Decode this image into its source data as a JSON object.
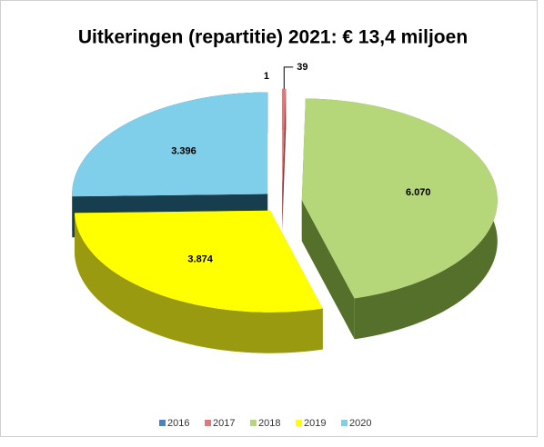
{
  "chart_data": {
    "type": "pie3d",
    "title": "Uitkeringen (repartitie) 2021: € 13,4 miljoen",
    "categories": [
      "2016",
      "2017",
      "2018",
      "2019",
      "2020"
    ],
    "values": [
      1,
      39,
      6070,
      3874,
      3396
    ],
    "value_labels": [
      "1",
      "39",
      "6.070",
      "3.874",
      "3.396"
    ],
    "colors": [
      "#4f81bd",
      "#e07a7a",
      "#b5d77a",
      "#ffff00",
      "#7fcfea"
    ],
    "side_colors": [
      "#2c4a70",
      "#8a3a3a",
      "#55702a",
      "#9a9a10",
      "#173e4e"
    ],
    "legend": "bottom"
  }
}
